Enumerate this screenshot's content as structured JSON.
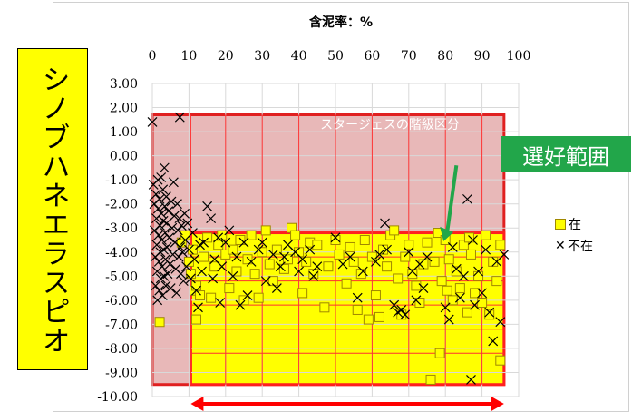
{
  "chart_data": {
    "type": "scatter",
    "title": "含泥率：%",
    "xlabel": "",
    "ylabel": "シノブハネエラスピオ",
    "x_axis_position": "top",
    "xlim": [
      0,
      100
    ],
    "ylim": [
      -10,
      3
    ],
    "x_ticks": [
      0,
      10,
      20,
      30,
      40,
      50,
      60,
      70,
      80,
      90,
      100
    ],
    "x_tick_labels": [
      "0",
      "10",
      "20",
      "30",
      "40",
      "50",
      "60",
      "70",
      "80",
      "90",
      "100"
    ],
    "y_ticks": [
      3,
      2,
      1,
      0,
      -1,
      -2,
      -3,
      -4,
      -5,
      -6,
      -7,
      -8,
      -9,
      -10
    ],
    "y_tick_labels": [
      "3.00",
      "2.00",
      "1.00",
      "0.00",
      "-1.00",
      "-2.00",
      "-3.00",
      "-4.00",
      "-5.00",
      "-6.00",
      "-7.00",
      "-8.00",
      "-9.00",
      "-10.00"
    ],
    "grid": true,
    "legend": {
      "placement": "right"
    },
    "series": [
      {
        "name": "在",
        "marker": "square",
        "color": "#ffff00",
        "edge_color": "#a08800",
        "points": [
          [
            2,
            -6.9
          ],
          [
            8,
            -3.6
          ],
          [
            9,
            -3.3
          ],
          [
            10,
            -4.4
          ],
          [
            10.5,
            -4.9
          ],
          [
            11,
            -3.9
          ],
          [
            11.5,
            -5.6
          ],
          [
            12,
            -6.8
          ],
          [
            12,
            -5.4
          ],
          [
            13,
            -5.8
          ],
          [
            14,
            -4.2
          ],
          [
            15,
            -3.4
          ],
          [
            16,
            -5.9
          ],
          [
            17,
            -4.6
          ],
          [
            18,
            -3.7
          ],
          [
            19,
            -3.3
          ],
          [
            20,
            -4.1
          ],
          [
            21,
            -5.5
          ],
          [
            22,
            -3.9
          ],
          [
            23,
            -4.8
          ],
          [
            24,
            -3.5
          ],
          [
            25,
            -6.0
          ],
          [
            26,
            -4.3
          ],
          [
            27,
            -3.3
          ],
          [
            28,
            -4.9
          ],
          [
            29,
            -5.9
          ],
          [
            30,
            -4.0
          ],
          [
            31,
            -3.1
          ],
          [
            32,
            -4.5
          ],
          [
            33,
            -5.2
          ],
          [
            34,
            -3.9
          ],
          [
            36,
            -4.7
          ],
          [
            37,
            -4.3
          ],
          [
            38,
            -3.0
          ],
          [
            39,
            -3.3
          ],
          [
            40,
            -4.0
          ],
          [
            41,
            -5.7
          ],
          [
            42,
            -4.4
          ],
          [
            43,
            -3.6
          ],
          [
            44,
            -4.9
          ],
          [
            45,
            -3.7
          ],
          [
            47,
            -6.3
          ],
          [
            48,
            -4.6
          ],
          [
            50,
            -3.5
          ],
          [
            51,
            -4.1
          ],
          [
            53,
            -5.3
          ],
          [
            54,
            -3.8
          ],
          [
            55,
            -4.4
          ],
          [
            56,
            -6.4
          ],
          [
            57,
            -4.9
          ],
          [
            58,
            -3.5
          ],
          [
            59,
            -6.8
          ],
          [
            60,
            -4.2
          ],
          [
            61,
            -5.8
          ],
          [
            62,
            -6.7
          ],
          [
            63,
            -3.9
          ],
          [
            64,
            -4.6
          ],
          [
            65,
            -3.3
          ],
          [
            66,
            -3.1
          ],
          [
            67,
            -5.1
          ],
          [
            68,
            -6.6
          ],
          [
            69,
            -4.2
          ],
          [
            70,
            -3.7
          ],
          [
            71,
            -4.9
          ],
          [
            72,
            -5.4
          ],
          [
            73,
            -6.1
          ],
          [
            74,
            -4.5
          ],
          [
            75,
            -3.6
          ],
          [
            76,
            -9.3
          ],
          [
            77,
            -4.4
          ],
          [
            78,
            -3.2
          ],
          [
            78.5,
            -8.2
          ],
          [
            79,
            -5.2
          ],
          [
            80,
            -3.5
          ],
          [
            80.5,
            -5.6
          ],
          [
            81,
            -4.3
          ],
          [
            82,
            -6.0
          ],
          [
            83,
            -4.8
          ],
          [
            84,
            -5.5
          ],
          [
            85,
            -3.7
          ],
          [
            86,
            -6.5
          ],
          [
            86.5,
            -3.4
          ],
          [
            87,
            -4.1
          ],
          [
            88,
            -5.7
          ],
          [
            89,
            -5.0
          ],
          [
            90,
            -6.1
          ],
          [
            91,
            -3.3
          ],
          [
            92,
            -6.6
          ],
          [
            93,
            -4.4
          ],
          [
            94,
            -5.2
          ],
          [
            95,
            -3.7
          ],
          [
            95,
            -8.5
          ]
        ]
      },
      {
        "name": "不在",
        "marker": "cross",
        "color": "#000000",
        "points": [
          [
            0,
            1.4
          ],
          [
            7.5,
            1.6
          ],
          [
            0.3,
            -1.2
          ],
          [
            0.5,
            -2.0
          ],
          [
            0.6,
            -3.1
          ],
          [
            0.8,
            -4.2
          ],
          [
            0.9,
            -5.4
          ],
          [
            1.0,
            -1.6
          ],
          [
            1.1,
            -2.6
          ],
          [
            1.2,
            -3.7
          ],
          [
            1.3,
            -4.8
          ],
          [
            1.4,
            -6.0
          ],
          [
            1.5,
            -1.0
          ],
          [
            1.6,
            -2.2
          ],
          [
            1.7,
            -3.3
          ],
          [
            1.8,
            -4.4
          ],
          [
            1.9,
            -5.6
          ],
          [
            2.0,
            -1.8
          ],
          [
            2.1,
            -2.9
          ],
          [
            2.2,
            -4.0
          ],
          [
            2.3,
            -5.1
          ],
          [
            2.4,
            -0.9
          ],
          [
            2.5,
            -2.4
          ],
          [
            2.6,
            -3.5
          ],
          [
            2.7,
            -4.6
          ],
          [
            2.8,
            -5.8
          ],
          [
            2.9,
            -1.4
          ],
          [
            3.0,
            -2.7
          ],
          [
            3.1,
            -3.9
          ],
          [
            3.2,
            -5.0
          ],
          [
            3.3,
            -0.5
          ],
          [
            3.4,
            -2.1
          ],
          [
            3.5,
            -3.2
          ],
          [
            3.6,
            -4.3
          ],
          [
            3.7,
            -5.4
          ],
          [
            3.8,
            -1.7
          ],
          [
            3.9,
            -2.8
          ],
          [
            4.0,
            -3.8
          ],
          [
            4.2,
            -4.9
          ],
          [
            4.4,
            -2.3
          ],
          [
            4.6,
            -3.4
          ],
          [
            4.8,
            -4.5
          ],
          [
            5.0,
            -5.5
          ],
          [
            5.2,
            -1.9
          ],
          [
            5.4,
            -3.0
          ],
          [
            5.6,
            -4.1
          ],
          [
            5.8,
            -1.1
          ],
          [
            6.0,
            -2.5
          ],
          [
            6.2,
            -3.6
          ],
          [
            6.4,
            -4.7
          ],
          [
            6.6,
            -5.7
          ],
          [
            6.8,
            -2.0
          ],
          [
            7.0,
            -3.1
          ],
          [
            7.2,
            -4.2
          ],
          [
            7.4,
            -2.6
          ],
          [
            7.6,
            -3.8
          ],
          [
            7.8,
            -4.9
          ],
          [
            8.0,
            -2.9
          ],
          [
            8.2,
            -4.0
          ],
          [
            8.5,
            -5.2
          ],
          [
            8.8,
            -2.4
          ],
          [
            9.0,
            -3.5
          ],
          [
            9.3,
            -4.6
          ],
          [
            9.6,
            -2.8
          ],
          [
            10.0,
            -3.9
          ],
          [
            10.5,
            -5.1
          ],
          [
            11.0,
            -3.2
          ],
          [
            11.5,
            -4.3
          ],
          [
            12.0,
            -5.6
          ],
          [
            12.5,
            -6.3
          ],
          [
            13.0,
            -3.7
          ],
          [
            13.5,
            -4.8
          ],
          [
            14.0,
            -3.6
          ],
          [
            15.0,
            -2.1
          ],
          [
            16.0,
            -2.6
          ],
          [
            16.5,
            -5.1
          ],
          [
            17.0,
            -4.3
          ],
          [
            18.0,
            -3.4
          ],
          [
            18.5,
            -6.1
          ],
          [
            19.0,
            -4.6
          ],
          [
            20.0,
            -3.6
          ],
          [
            21.0,
            -3.1
          ],
          [
            22.0,
            -5.0
          ],
          [
            23.0,
            -4.2
          ],
          [
            24.0,
            -6.2
          ],
          [
            25.0,
            -3.6
          ],
          [
            26.0,
            -5.8
          ],
          [
            27.0,
            -4.4
          ],
          [
            29.0,
            -3.9
          ],
          [
            30.0,
            -3.6
          ],
          [
            31.0,
            -5.2
          ],
          [
            33.0,
            -4.1
          ],
          [
            34.0,
            -5.5
          ],
          [
            35.0,
            -4.6
          ],
          [
            36.0,
            -4.2
          ],
          [
            37.0,
            -3.7
          ],
          [
            39.0,
            -4.0
          ],
          [
            40.0,
            -4.8
          ],
          [
            41.0,
            -4.3
          ],
          [
            43.0,
            -3.9
          ],
          [
            44.0,
            -5.0
          ],
          [
            45.0,
            -4.6
          ],
          [
            50.0,
            -3.4
          ],
          [
            52.0,
            -4.5
          ],
          [
            54.0,
            -4.2
          ],
          [
            56.0,
            -5.9
          ],
          [
            57.5,
            -4.8
          ],
          [
            61.0,
            -4.4
          ],
          [
            62.0,
            -4.1
          ],
          [
            63.5,
            -2.8
          ],
          [
            64.0,
            -3.9
          ],
          [
            66.0,
            -6.2
          ],
          [
            67.0,
            -6.5
          ],
          [
            68.0,
            -6.4
          ],
          [
            69.0,
            -6.6
          ],
          [
            70.0,
            -4.0
          ],
          [
            71.0,
            -4.8
          ],
          [
            72.0,
            -6.0
          ],
          [
            73.0,
            -4.5
          ],
          [
            74.0,
            -5.5
          ],
          [
            75.0,
            -4.2
          ],
          [
            80.0,
            -6.3
          ],
          [
            81.0,
            -6.8
          ],
          [
            82.0,
            -3.8
          ],
          [
            83.0,
            -4.7
          ],
          [
            84.0,
            -5.9
          ],
          [
            85.0,
            -5.0
          ],
          [
            86.0,
            -1.8
          ],
          [
            87.0,
            -9.3
          ],
          [
            87.5,
            -3.5
          ],
          [
            88.0,
            -6.2
          ],
          [
            89.0,
            -4.8
          ],
          [
            90.0,
            -5.7
          ],
          [
            91.0,
            -3.9
          ],
          [
            92.0,
            -6.5
          ],
          [
            93.0,
            -7.7
          ],
          [
            94.0,
            -4.4
          ],
          [
            95.0,
            -6.9
          ],
          [
            96.0,
            -4.1
          ]
        ]
      }
    ],
    "regions": [
      {
        "name": "stage-class-region",
        "x": [
          0,
          96
        ],
        "y": [
          -9.5,
          1.7
        ],
        "fill": "#e8b8b8",
        "stroke": "#e02020"
      },
      {
        "name": "preferred-range-region",
        "x": [
          10.5,
          96
        ],
        "y": [
          -9.5,
          -3.2
        ],
        "fill": "#ffff00",
        "stroke": "#ff2020"
      }
    ],
    "class_boundaries_x": [
      10.5,
      20,
      30,
      40,
      50,
      60,
      70,
      80,
      90
    ],
    "class_boundaries_y": [
      -4.2,
      -5.2,
      -6.2,
      -7.2,
      -8.2
    ],
    "range_arrow": {
      "x": [
        10.5,
        96
      ],
      "color": "#ff0000"
    },
    "annotations": {
      "stage_class_label": "スタージェスの階級区分",
      "preferred_range_label": "選好範囲",
      "callout_arrow_from": [
        83,
        -0.4
      ],
      "callout_arrow_to": [
        79.5,
        -3.55
      ]
    },
    "colors": {
      "callout_green": "#22a64a",
      "region_red": "#e02020",
      "present_fill": "#ffff00"
    }
  }
}
